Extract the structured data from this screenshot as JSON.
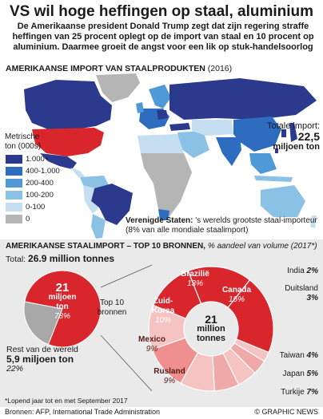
{
  "headline": "VS wil hoge heffingen op staal, aluminium",
  "intro": "De Amerikaanse president Donald Trump zegt dat zijn regering straffe heffingen van 25 procent oplegt op de import van staal en 10 procent op aluminium. Daarmee groeit de angst voor een lik op stuk-handelsoorlog",
  "map": {
    "heading": "AMERIKAANSE IMPORT VAN STAALPRODUKTEN",
    "year": "(2016)",
    "legend_title": "Metrische ton (000s)",
    "legend": [
      {
        "label": "1.000+",
        "color": "#2b3a8c"
      },
      {
        "label": "400-1.000",
        "color": "#2e6cc0"
      },
      {
        "label": "200-400",
        "color": "#4f9ad6"
      },
      {
        "label": "100-200",
        "color": "#8cc1e6"
      },
      {
        "label": "0-100",
        "color": "#c6def1"
      },
      {
        "label": "0",
        "color": "#b5b5b5"
      }
    ],
    "total_label": "Totale import:",
    "total_value": "22,5",
    "total_unit": "miljoen ton",
    "us_note_bold": "Verenigde Staten:",
    "us_note": "'s werelds grootste staal-importeur (8% van alle mondiale staalimport)"
  },
  "chart_data": {
    "type": "pie",
    "heading": "AMERIKAANSE STAALIMPORT – TOP 10 BRONNEN,",
    "heading_note": "% aandeel van volume (2017*)",
    "total_label": "Total:",
    "total_value": "26.9 million tonnes",
    "overview": {
      "slices": [
        {
          "name": "Top 10 bronnen",
          "value_text": "21",
          "unit": "miljoen ton",
          "percent": 78,
          "percent_text": "78%",
          "color": "#d9262c"
        },
        {
          "name": "Rest van de wereld",
          "value_text": "5,9",
          "unit": "miljoen ton",
          "percent": 22,
          "percent_text": "22%",
          "color": "#a8a8a8"
        }
      ]
    },
    "donut": {
      "center_value": "21",
      "center_unit": "million tonnes",
      "slices": [
        {
          "name": "Brazilië",
          "percent": 13,
          "percent_text": "13%",
          "color": "#d9262c"
        },
        {
          "name": "Canada",
          "percent": 16,
          "percent_text": "16%",
          "color": "#d9262c"
        },
        {
          "name": "India",
          "percent": 2,
          "percent_text": "2%",
          "color": "#f6c3c3"
        },
        {
          "name": "Duitsland",
          "percent": 3,
          "percent_text": "3%",
          "color": "#f0a9a9"
        },
        {
          "name": "Taiwan",
          "percent": 4,
          "percent_text": "4%",
          "color": "#f6c3c3"
        },
        {
          "name": "Japan",
          "percent": 5,
          "percent_text": "5%",
          "color": "#f0a9a9"
        },
        {
          "name": "Turkije",
          "percent": 7,
          "percent_text": "7%",
          "color": "#f6c3c3"
        },
        {
          "name": "Rusland",
          "percent": 9,
          "percent_text": "9%",
          "color": "#ef8f8f"
        },
        {
          "name": "Mexico",
          "percent": 9,
          "percent_text": "9%",
          "color": "#f6c3c3"
        },
        {
          "name": "Zuid-Korea",
          "percent": 10,
          "percent_text": "10%",
          "color": "#d9262c"
        }
      ]
    }
  },
  "footnote": "*Lopend jaar tot en met September 2017",
  "sources": "Bronnen: AFP, International Trade Administration",
  "credit": "© GRAPHIC NEWS"
}
